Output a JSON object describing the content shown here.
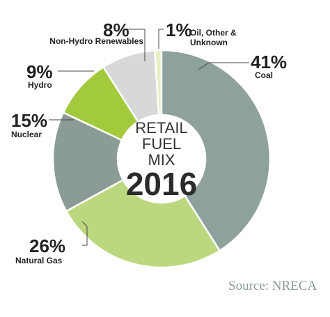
{
  "chart_data": {
    "type": "pie",
    "donut": true,
    "title": "RETAIL FUEL MIX",
    "subtitle": "2016",
    "source": "Source: NRECA",
    "categories": [
      "Coal",
      "Natural Gas",
      "Nuclear",
      "Hydro",
      "Non-Hydro Renewables",
      "Oil, Other & Unknown"
    ],
    "values": [
      41,
      26,
      15,
      9,
      8,
      1
    ],
    "value_labels": [
      "41%",
      "26%",
      "15%",
      "9%",
      "8%",
      "1%"
    ],
    "colors": [
      "#8fa19c",
      "#bcd87e",
      "#8b9b95",
      "#a3c93c",
      "#d6d9d7",
      "#e6efc4"
    ]
  }
}
